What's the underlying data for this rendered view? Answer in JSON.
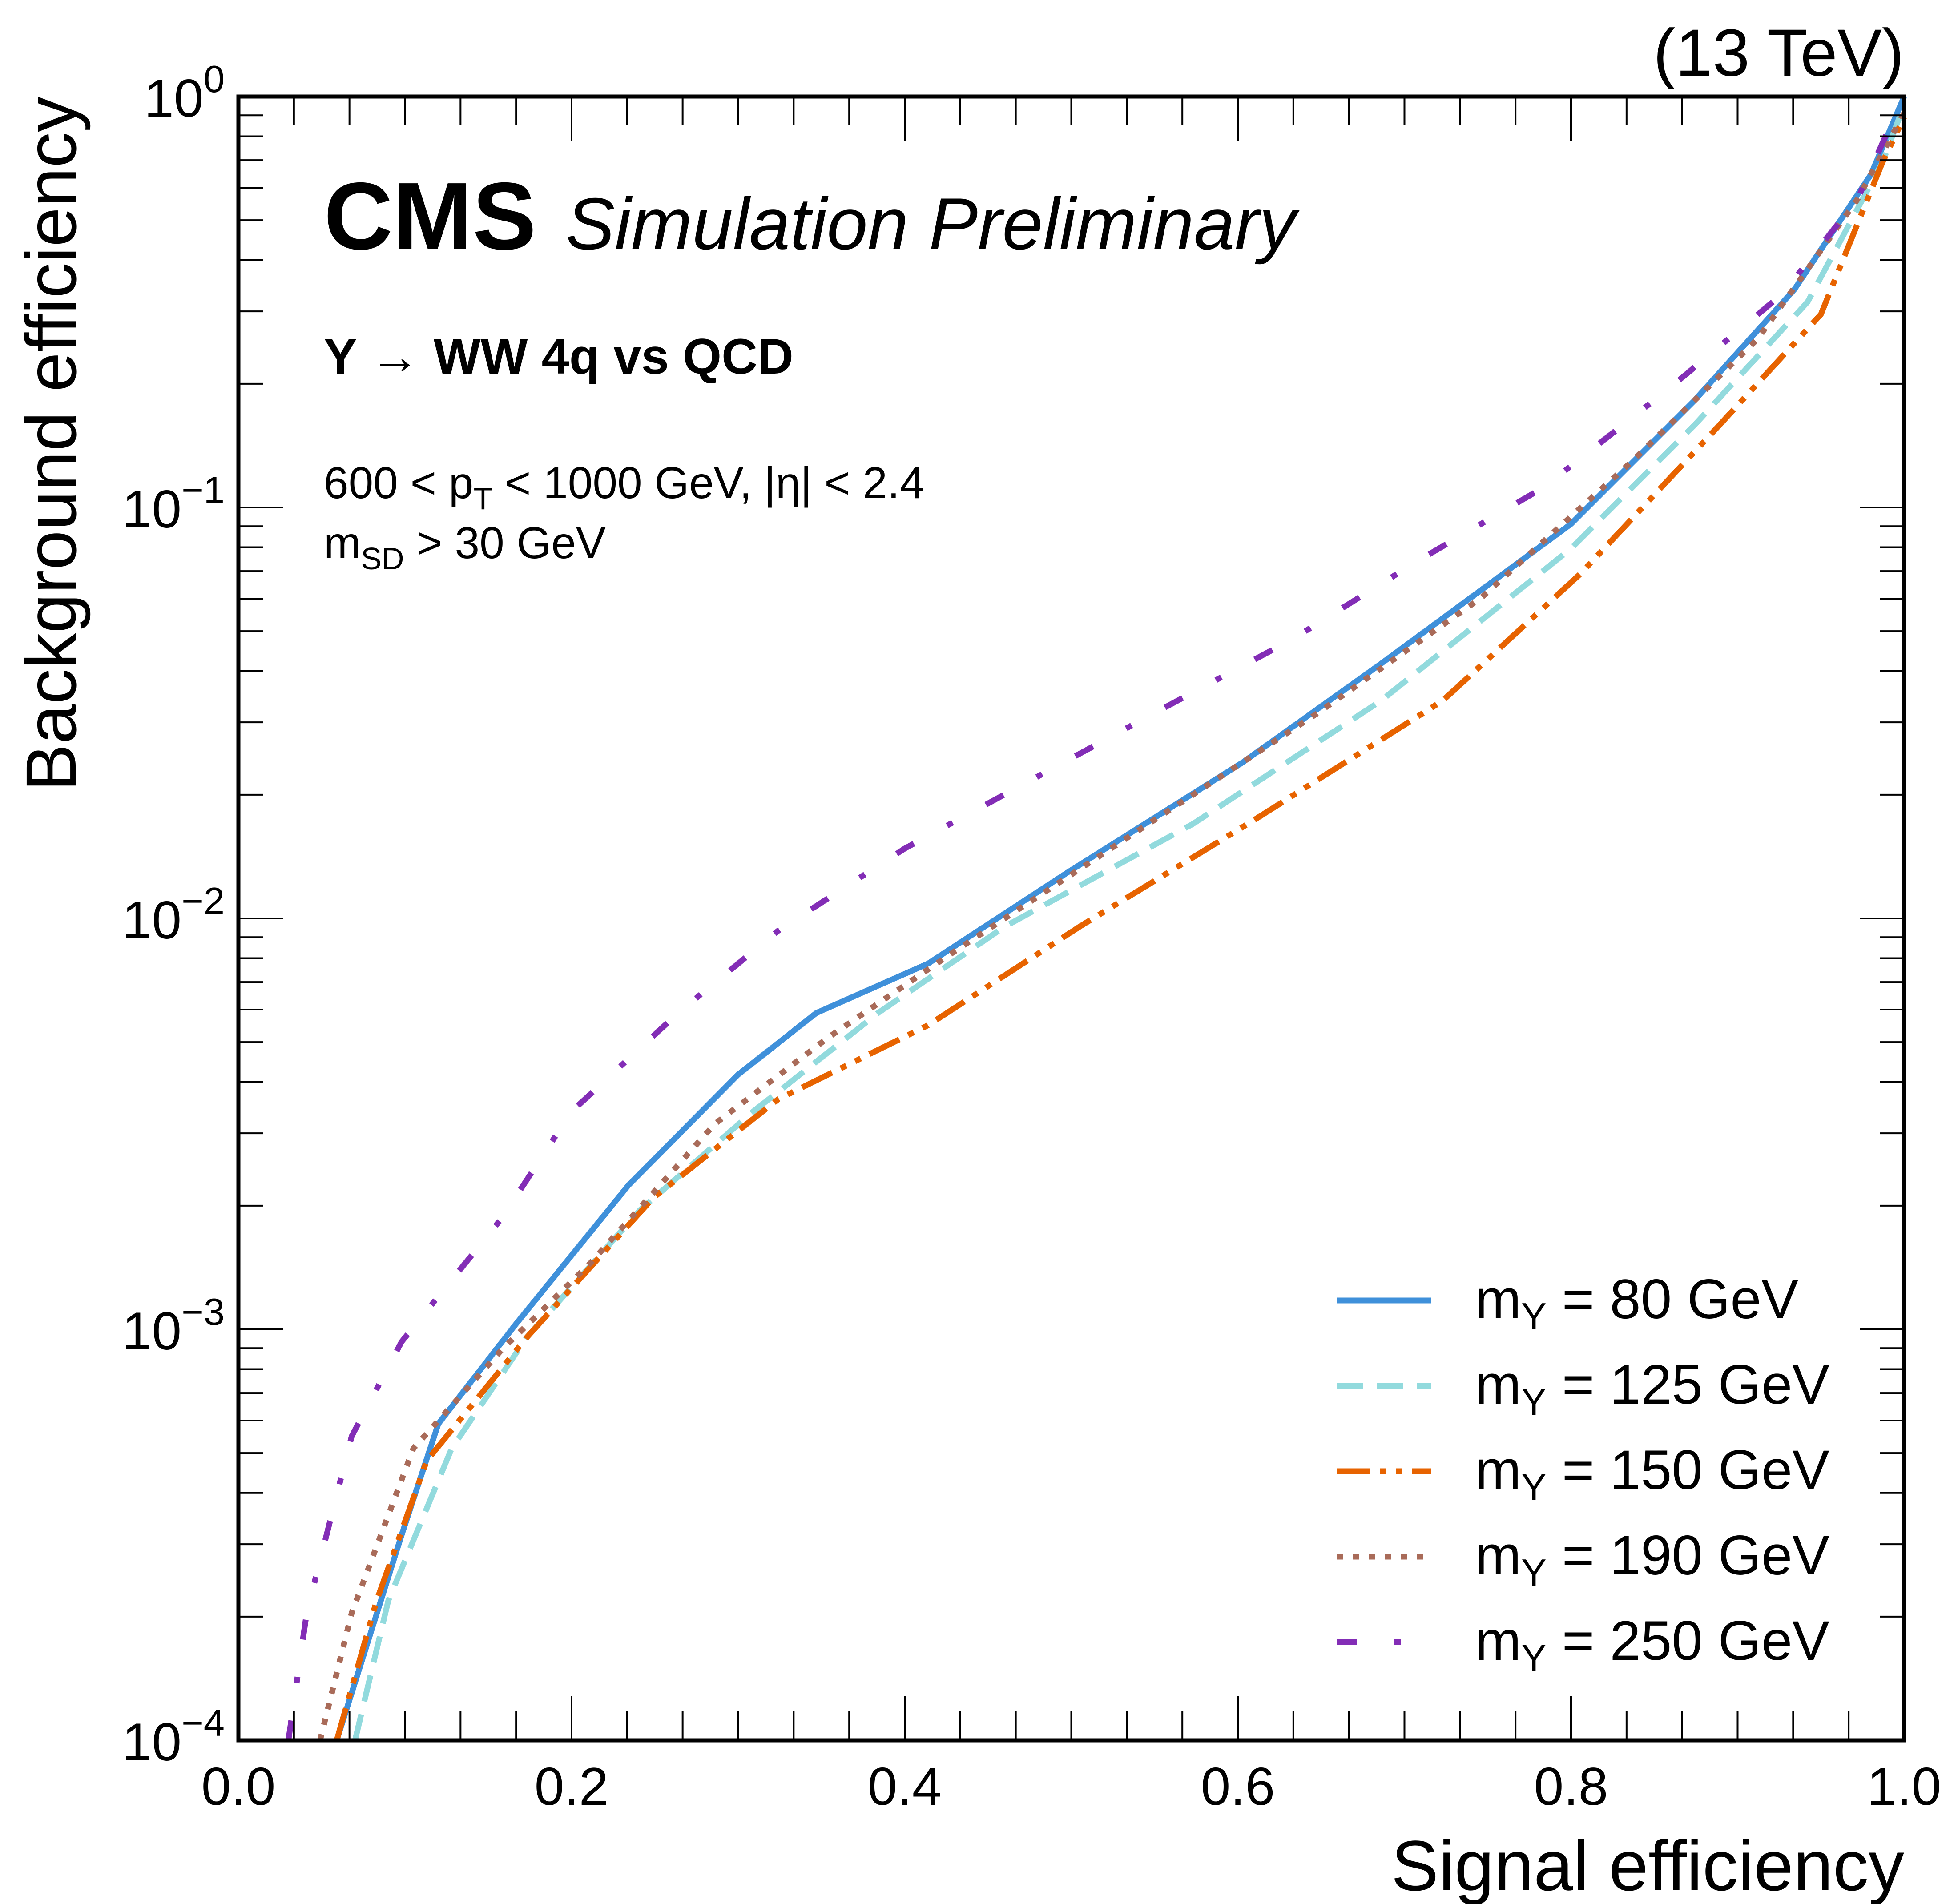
{
  "chart_data": {
    "type": "line",
    "title": "",
    "energy_label": "(13 TeV)",
    "cms_label": "CMS",
    "cms_sub": "Simulation Preliminary",
    "process": "Y → WW 4q vs QCD",
    "cuts": [
      "600 < p",
      "T",
      " < 1000 GeV, |η| < 2.4"
    ],
    "cut2": [
      "m",
      "SD",
      " > 30 GeV"
    ],
    "xlabel": "Signal efficiency",
    "ylabel": "Background efficiency",
    "xlim": [
      0,
      1
    ],
    "ylim": [
      0.0001,
      1
    ],
    "yscale": "log",
    "xticks": [
      "0.0",
      "0.2",
      "0.4",
      "0.6",
      "0.8",
      "1.0"
    ],
    "yticks": [
      {
        "base": "10",
        "exp": "0"
      },
      {
        "base": "10",
        "exp": "−1"
      },
      {
        "base": "10",
        "exp": "−2"
      },
      {
        "base": "10",
        "exp": "−3"
      },
      {
        "base": "10",
        "exp": "−4"
      }
    ],
    "legend_position": "bottom-right",
    "series": [
      {
        "name": "m",
        "sub": "Y",
        "label": " = 80 GeV",
        "color": "#3f90da",
        "style": "solid",
        "x": [
          0.059,
          0.098,
          0.12,
          0.166,
          0.234,
          0.3,
          0.347,
          0.414,
          0.497,
          0.603,
          0.686,
          0.8,
          0.874,
          0.934,
          0.98,
          1.0
        ],
        "log10y": [
          -4,
          -3.5,
          -3.23,
          -2.99,
          -2.65,
          -2.38,
          -2.23,
          -2.11,
          -1.89,
          -1.62,
          -1.38,
          -1.04,
          -0.74,
          -0.47,
          -0.19,
          0
        ]
      },
      {
        "name": "m",
        "sub": "Y",
        "label": " = 125 GeV",
        "color": "#92dadd",
        "style": "dashed",
        "x": [
          0.07,
          0.09,
          0.128,
          0.173,
          0.241,
          0.309,
          0.384,
          0.46,
          0.573,
          0.686,
          0.8,
          0.874,
          0.942,
          0.987,
          1.0
        ],
        "log10y": [
          -4,
          -3.66,
          -3.29,
          -3.02,
          -2.71,
          -2.47,
          -2.23,
          -2.02,
          -1.77,
          -1.47,
          -1.1,
          -0.8,
          -0.5,
          -0.16,
          -0.02
        ]
      },
      {
        "name": "m",
        "sub": "Y",
        "label": " = 150 GeV",
        "color": "#e76300",
        "style": "dashdotdot",
        "x": [
          0.059,
          0.083,
          0.113,
          0.173,
          0.249,
          0.324,
          0.414,
          0.505,
          0.61,
          0.723,
          0.806,
          0.889,
          0.95,
          0.987,
          1.0
        ],
        "log10y": [
          -4,
          -3.66,
          -3.32,
          -3.02,
          -2.68,
          -2.44,
          -2.26,
          -2.02,
          -1.76,
          -1.47,
          -1.16,
          -0.8,
          -0.53,
          -0.16,
          -0.05
        ]
      },
      {
        "name": "m",
        "sub": "Y",
        "label": " = 190 GeV",
        "color": "#a96b59",
        "style": "dotted",
        "x": [
          0.049,
          0.068,
          0.105,
          0.158,
          0.211,
          0.286,
          0.354,
          0.43,
          0.535,
          0.648,
          0.746,
          0.836,
          0.912,
          0.972,
          1.0
        ],
        "log10y": [
          -4,
          -3.69,
          -3.29,
          -3.05,
          -2.84,
          -2.5,
          -2.29,
          -2.08,
          -1.8,
          -1.5,
          -1.22,
          -0.89,
          -0.59,
          -0.25,
          -0.04
        ]
      },
      {
        "name": "m",
        "sub": "Y",
        "label": " = 250 GeV",
        "color": "#832db6",
        "style": "loosedashdot",
        "x": [
          0.03,
          0.041,
          0.068,
          0.098,
          0.158,
          0.2,
          0.264,
          0.324,
          0.4,
          0.482,
          0.55,
          0.633,
          0.708,
          0.784,
          0.859,
          0.927,
          0.972,
          0.995
        ],
        "log10y": [
          -4,
          -3.69,
          -3.26,
          -3.03,
          -2.73,
          -2.47,
          -2.23,
          -2.03,
          -1.83,
          -1.65,
          -1.5,
          -1.32,
          -1.13,
          -0.95,
          -0.71,
          -0.48,
          -0.25,
          -0.04
        ]
      }
    ]
  }
}
